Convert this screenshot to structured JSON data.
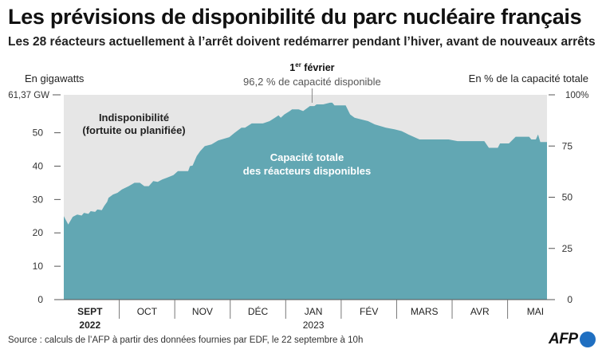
{
  "title": "Les prévisions de disponibilité du parc nucléaire français",
  "subtitle": "Les 28 réacteurs actuellement à l’arrêt doivent redémarrer pendant l’hiver, avant de nouveaux arrêts",
  "source": "Source : calculs de l’AFP à partir des données fournies par EDF, le 22 septembre à 10h",
  "logo_text": "AFP",
  "colors": {
    "area": "#62a7b3",
    "background_band": "#e6e6e6",
    "logo_blue": "#1f6fc1"
  },
  "chart_data": {
    "type": "area",
    "ylabel_left": "En gigawatts",
    "ylabel_right": "En % de la capacité totale",
    "max_label": "61,37 GW",
    "max_value": 61.37,
    "right_max_label": "100%",
    "ylim": [
      0,
      61.37
    ],
    "yticks_left": [
      0,
      10,
      20,
      30,
      40,
      50
    ],
    "yticks_left_labels": [
      "0",
      "10",
      "20",
      "30",
      "40",
      "50"
    ],
    "yticks_right_pct": [
      0,
      25,
      50,
      75
    ],
    "yticks_right_labels": [
      "0",
      "25",
      "50",
      "75"
    ],
    "months": [
      {
        "label": "SEPT",
        "year": "2022"
      },
      {
        "label": "OCT",
        "year": ""
      },
      {
        "label": "NOV",
        "year": ""
      },
      {
        "label": "DÉC",
        "year": ""
      },
      {
        "label": "JAN",
        "year": "2023"
      },
      {
        "label": "FÉV",
        "year": ""
      },
      {
        "label": "MARS",
        "year": ""
      },
      {
        "label": "AVR",
        "year": ""
      },
      {
        "label": "MAI",
        "year": ""
      }
    ],
    "xlim_months": [
      0,
      8.71
    ],
    "annotation_peak_title": "1er février",
    "annotation_peak_title_main": "1",
    "annotation_peak_title_sup": "er",
    "annotation_peak_title_rest": " février",
    "annotation_peak_text": "96,2 % de capacité disponible",
    "label_unavailable": [
      "Indisponibilité",
      "(fortuite ou planifiée)"
    ],
    "label_available": [
      "Capacité totale",
      "des réacteurs disponibles"
    ],
    "series": [
      {
        "name": "Capacité totale des réacteurs disponibles",
        "points": [
          [
            0.0,
            25.0
          ],
          [
            0.1,
            22.5
          ],
          [
            0.2,
            24.8
          ],
          [
            0.3,
            25.5
          ],
          [
            0.4,
            25.2
          ],
          [
            0.45,
            26.0
          ],
          [
            0.55,
            25.7
          ],
          [
            0.6,
            26.5
          ],
          [
            0.7,
            26.3
          ],
          [
            0.75,
            27.0
          ],
          [
            0.85,
            26.8
          ],
          [
            0.9,
            28.0
          ],
          [
            0.97,
            29.3
          ],
          [
            1.0,
            30.5
          ],
          [
            1.1,
            31.5
          ],
          [
            1.2,
            32.0
          ],
          [
            1.3,
            33.0
          ],
          [
            1.45,
            34.0
          ],
          [
            1.58,
            35.0
          ],
          [
            1.7,
            35.0
          ],
          [
            1.8,
            34.0
          ],
          [
            1.9,
            34.0
          ],
          [
            2.0,
            35.5
          ],
          [
            2.1,
            35.3
          ],
          [
            2.2,
            36.0
          ],
          [
            2.3,
            36.5
          ],
          [
            2.45,
            37.3
          ],
          [
            2.55,
            38.5
          ],
          [
            2.7,
            38.5
          ],
          [
            2.78,
            38.5
          ],
          [
            2.82,
            40.0
          ],
          [
            2.88,
            40.2
          ],
          [
            2.97,
            43.0
          ],
          [
            3.05,
            44.5
          ],
          [
            3.15,
            46.0
          ],
          [
            3.3,
            46.5
          ],
          [
            3.45,
            47.7
          ],
          [
            3.7,
            48.7
          ],
          [
            3.82,
            50.0
          ],
          [
            3.97,
            51.5
          ],
          [
            4.05,
            51.5
          ],
          [
            4.2,
            52.8
          ],
          [
            4.45,
            52.8
          ],
          [
            4.6,
            53.5
          ],
          [
            4.72,
            54.5
          ],
          [
            4.8,
            55.2
          ],
          [
            4.85,
            54.5
          ],
          [
            4.93,
            55.5
          ],
          [
            5.05,
            56.5
          ],
          [
            5.1,
            57.0
          ],
          [
            5.25,
            57.0
          ],
          [
            5.35,
            56.5
          ],
          [
            5.45,
            57.5
          ],
          [
            5.5,
            58.0
          ],
          [
            5.6,
            58.0
          ],
          [
            5.65,
            58.5
          ],
          [
            5.8,
            58.5
          ],
          [
            5.95,
            59.0
          ],
          [
            6.0,
            59.0
          ],
          [
            6.05,
            58.2
          ],
          [
            6.3,
            58.2
          ],
          [
            6.4,
            55.5
          ],
          [
            6.5,
            54.5
          ],
          [
            6.65,
            54.0
          ],
          [
            6.8,
            53.5
          ],
          [
            6.95,
            52.5
          ],
          [
            7.2,
            51.5
          ],
          [
            7.4,
            51.0
          ],
          [
            7.55,
            50.5
          ],
          [
            7.7,
            49.5
          ],
          [
            7.95,
            48.0
          ],
          [
            8.6,
            48.0
          ],
          [
            8.8,
            47.5
          ],
          [
            9.05,
            47.5
          ],
          [
            9.4,
            47.5
          ],
          [
            9.5,
            45.5
          ],
          [
            9.7,
            45.5
          ],
          [
            9.75,
            46.8
          ],
          [
            9.95,
            46.8
          ],
          [
            10.1,
            48.8
          ],
          [
            10.4,
            48.8
          ],
          [
            10.45,
            48.0
          ],
          [
            10.55,
            48.0
          ],
          [
            10.6,
            49.5
          ],
          [
            10.65,
            47.2
          ],
          [
            10.8,
            47.2
          ]
        ]
      }
    ]
  }
}
